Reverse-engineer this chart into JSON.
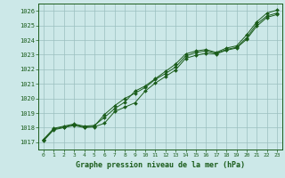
{
  "background_color": "#cce8e8",
  "grid_color": "#9bbfbf",
  "line_color": "#1a5c1a",
  "title": "Graphe pression niveau de la mer (hPa)",
  "xlim": [
    -0.5,
    23.5
  ],
  "ylim": [
    1016.5,
    1026.5
  ],
  "yticks": [
    1017,
    1018,
    1019,
    1020,
    1021,
    1022,
    1023,
    1024,
    1025,
    1026
  ],
  "xticks": [
    0,
    1,
    2,
    3,
    4,
    5,
    6,
    7,
    8,
    9,
    10,
    11,
    12,
    13,
    14,
    15,
    16,
    17,
    18,
    19,
    20,
    21,
    22,
    23
  ],
  "hours": [
    0,
    1,
    2,
    3,
    4,
    5,
    6,
    7,
    8,
    9,
    10,
    11,
    12,
    13,
    14,
    15,
    16,
    17,
    18,
    19,
    20,
    21,
    22,
    23
  ],
  "line1": [
    1017.1,
    1017.85,
    1018.0,
    1018.15,
    1018.0,
    1018.05,
    1018.3,
    1019.1,
    1019.4,
    1019.7,
    1020.5,
    1021.05,
    1021.5,
    1021.95,
    1022.75,
    1022.95,
    1023.1,
    1023.05,
    1023.3,
    1023.45,
    1024.05,
    1024.95,
    1025.55,
    1025.75
  ],
  "line2": [
    1017.15,
    1017.9,
    1018.05,
    1018.2,
    1018.05,
    1018.1,
    1018.9,
    1019.5,
    1020.0,
    1020.35,
    1020.75,
    1021.3,
    1021.7,
    1022.15,
    1022.9,
    1023.15,
    1023.25,
    1023.1,
    1023.35,
    1023.5,
    1024.15,
    1025.1,
    1025.65,
    1025.85
  ],
  "line3": [
    1017.2,
    1017.95,
    1018.1,
    1018.25,
    1018.1,
    1018.15,
    1018.7,
    1019.3,
    1019.75,
    1020.5,
    1020.85,
    1021.35,
    1021.85,
    1022.35,
    1023.05,
    1023.25,
    1023.35,
    1023.15,
    1023.45,
    1023.6,
    1024.35,
    1025.25,
    1025.85,
    1026.05
  ]
}
